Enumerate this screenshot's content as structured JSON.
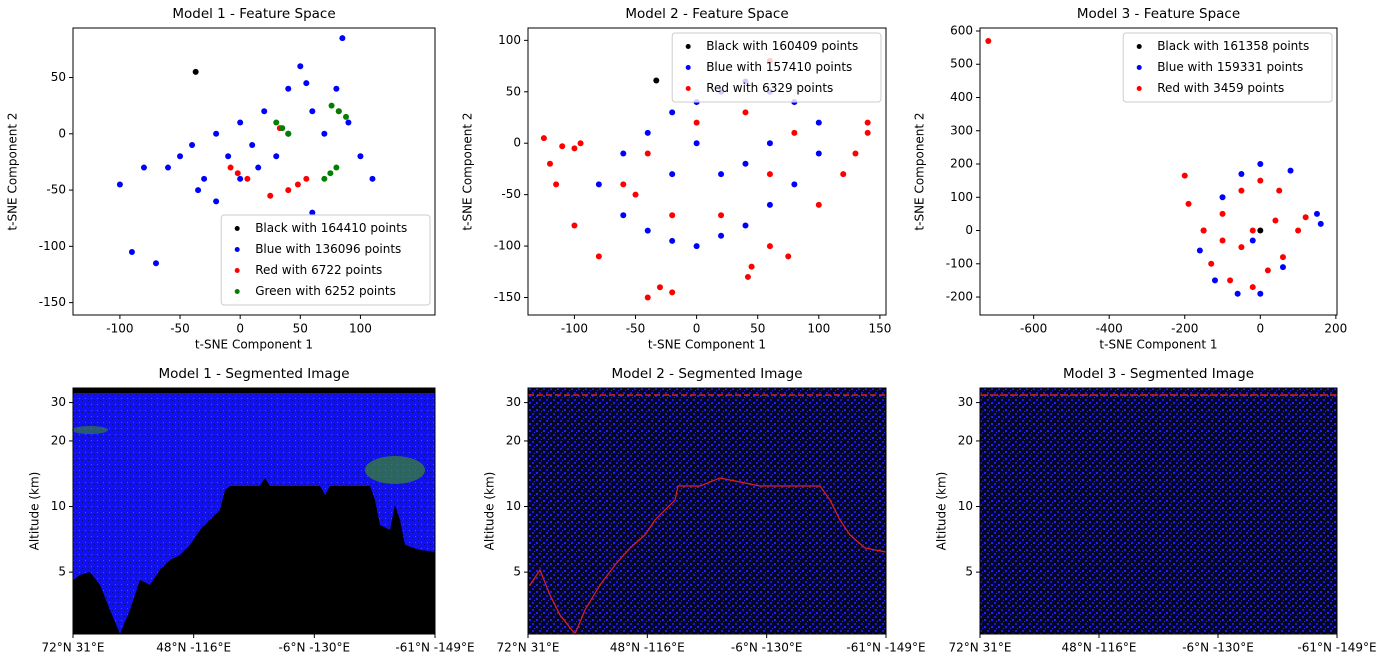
{
  "chart_data": [
    {
      "type": "scatter",
      "title": "Model 1 - Feature Space",
      "xlabel": "t-SNE Component 1",
      "ylabel": "t-SNE Component 2",
      "xlim": [
        -139,
        162
      ],
      "ylim": [
        -161,
        94
      ],
      "xticks": [
        -100,
        -50,
        0,
        50,
        100
      ],
      "yticks": [
        -150,
        -100,
        -50,
        0,
        50
      ],
      "legend": "lower right",
      "series": [
        {
          "name": "Black with 164410 points",
          "color": "#000000",
          "x": [
            -37
          ],
          "y": [
            55
          ]
        },
        {
          "name": "Blue with 136096 points",
          "color": "#0000ff",
          "x": [
            -60,
            -40,
            -20,
            0,
            20,
            40,
            50,
            60,
            80,
            30,
            0,
            -30,
            -80,
            -100,
            -90,
            -70,
            85,
            110,
            100,
            60,
            -20,
            -50,
            70,
            10,
            40,
            55,
            90,
            -10,
            15,
            -35
          ],
          "y": [
            -30,
            -10,
            0,
            10,
            20,
            40,
            60,
            20,
            40,
            -20,
            -40,
            -40,
            -30,
            -45,
            -105,
            -115,
            85,
            -40,
            -20,
            -70,
            -60,
            -20,
            0,
            -10,
            0,
            45,
            10,
            -20,
            -30,
            -50
          ]
        },
        {
          "name": "Red with 6722 points",
          "color": "#ff0000",
          "x": [
            -2,
            6,
            -8,
            48,
            40,
            33,
            82,
            25,
            55
          ],
          "y": [
            -35,
            -40,
            -30,
            -45,
            -50,
            5,
            20,
            -55,
            -40
          ]
        },
        {
          "name": "Green with 6252 points",
          "color": "#008000",
          "x": [
            35,
            30,
            40,
            82,
            88,
            76,
            75,
            70,
            80
          ],
          "y": [
            5,
            10,
            0,
            20,
            15,
            25,
            -35,
            -40,
            -30
          ]
        }
      ]
    },
    {
      "type": "scatter",
      "title": "Model 2 - Feature Space",
      "xlabel": "t-SNE Component 1",
      "ylabel": "t-SNE Component 2",
      "xlim": [
        -138,
        155
      ],
      "ylim": [
        -167,
        112
      ],
      "xticks": [
        -100,
        -50,
        0,
        50,
        100,
        150
      ],
      "yticks": [
        -150,
        -100,
        -50,
        0,
        50,
        100
      ],
      "legend": "upper right",
      "series": [
        {
          "name": "Black with 160409 points",
          "color": "#000000",
          "x": [
            -33
          ],
          "y": [
            61
          ]
        },
        {
          "name": "Blue with 157410 points",
          "color": "#0000ff",
          "x": [
            -80,
            -60,
            -40,
            -20,
            0,
            20,
            40,
            60,
            80,
            100,
            100,
            80,
            60,
            40,
            20,
            0,
            -20,
            -40,
            -60,
            20,
            40,
            -20,
            0,
            60
          ],
          "y": [
            -40,
            -10,
            10,
            30,
            40,
            50,
            60,
            50,
            40,
            20,
            -10,
            -40,
            -60,
            -80,
            -90,
            -100,
            -95,
            -85,
            -70,
            -30,
            -20,
            -30,
            0,
            0
          ]
        },
        {
          "name": "Red with 6329 points",
          "color": "#ff0000",
          "x": [
            -100,
            -95,
            -110,
            -125,
            -120,
            -115,
            -100,
            -80,
            -30,
            -40,
            -20,
            45,
            42,
            60,
            75,
            100,
            120,
            130,
            140,
            140,
            60,
            -60,
            -40,
            0,
            40,
            80,
            20,
            -20,
            -50,
            60
          ],
          "y": [
            -5,
            0,
            -3,
            5,
            -20,
            -40,
            -80,
            -110,
            -140,
            -150,
            -145,
            -120,
            -130,
            -100,
            -110,
            -60,
            -30,
            -10,
            10,
            20,
            80,
            -40,
            -10,
            20,
            30,
            10,
            -70,
            -70,
            -50,
            -30
          ]
        }
      ]
    },
    {
      "type": "scatter",
      "title": "Model 3 - Feature Space",
      "xlabel": "t-SNE Component 1",
      "ylabel": "t-SNE Component 2",
      "xlim": [
        -742,
        203
      ],
      "ylim": [
        -254,
        609
      ],
      "xticks": [
        -600,
        -400,
        -200,
        0,
        200
      ],
      "yticks": [
        -200,
        -100,
        0,
        100,
        200,
        300,
        400,
        500,
        600
      ],
      "legend": "upper right",
      "series": [
        {
          "name": "Black with 161358 points",
          "color": "#000000",
          "x": [
            0
          ],
          "y": [
            0
          ]
        },
        {
          "name": "Blue with 159331 points",
          "color": "#0000ff",
          "x": [
            -150,
            -100,
            -50,
            0,
            80,
            150,
            160,
            60,
            0,
            -60,
            -120,
            -160,
            -20
          ],
          "y": [
            0,
            100,
            170,
            200,
            180,
            50,
            20,
            -110,
            -190,
            -190,
            -150,
            -60,
            -30
          ]
        },
        {
          "name": "Red with 3459 points",
          "color": "#ff0000",
          "x": [
            -720,
            -200,
            -190,
            -100,
            -50,
            0,
            50,
            120,
            60,
            20,
            -20,
            -80,
            -130,
            -150,
            -50,
            -20,
            40,
            100,
            -100
          ],
          "y": [
            570,
            165,
            80,
            50,
            120,
            150,
            120,
            40,
            -80,
            -120,
            -170,
            -150,
            -100,
            0,
            -50,
            0,
            30,
            0,
            -30
          ]
        }
      ]
    },
    {
      "type": "image",
      "title": "Model 1 - Segmented Image",
      "ylabel": "Altitude (km)",
      "yscale": "log",
      "ylim": [
        2.6,
        35
      ],
      "yticks": [
        5,
        10,
        20,
        30
      ],
      "categories": [
        "72°N 31°E",
        "48°N -116°E",
        "-6°N -130°E",
        "-61°N -149°E"
      ]
    },
    {
      "type": "image",
      "title": "Model 2 - Segmented Image",
      "ylabel": "Altitude (km)",
      "yscale": "log",
      "ylim": [
        2.6,
        35
      ],
      "yticks": [
        5,
        10,
        20,
        30
      ],
      "categories": [
        "72°N 31°E",
        "48°N -116°E",
        "-6°N -130°E",
        "-61°N -149°E"
      ]
    },
    {
      "type": "image",
      "title": "Model 3 - Segmented Image",
      "ylabel": "Altitude (km)",
      "yscale": "log",
      "ylim": [
        2.6,
        35
      ],
      "yticks": [
        5,
        10,
        20,
        30
      ],
      "categories": [
        "72°N 31°E",
        "48°N -116°E",
        "-6°N -130°E",
        "-61°N -149°E"
      ]
    }
  ]
}
